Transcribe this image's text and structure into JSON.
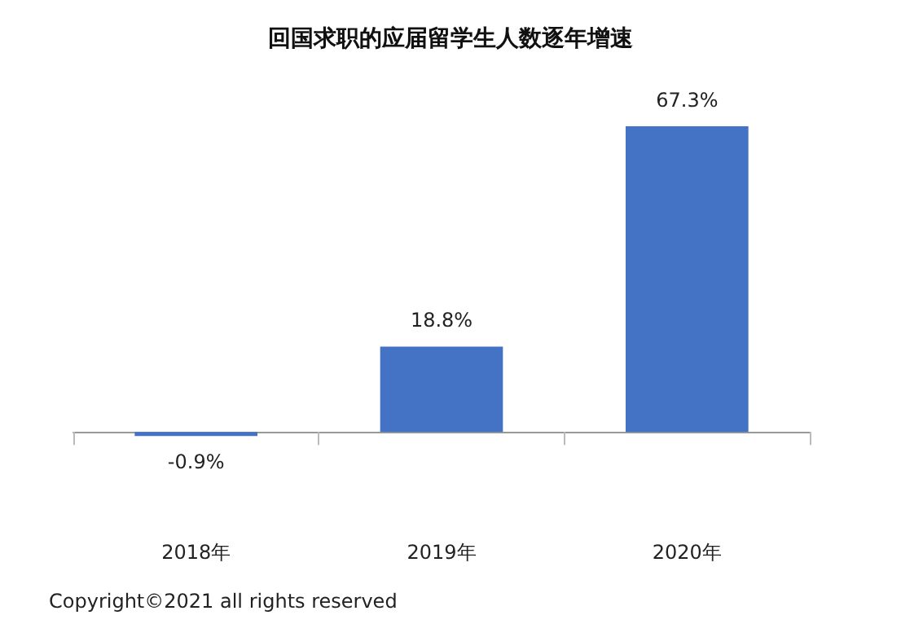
{
  "chart_data": {
    "type": "bar",
    "title": "回国求职的应届留学生人数逐年增速",
    "categories": [
      "2018年",
      "2019年",
      "2020年"
    ],
    "values": [
      -0.9,
      18.8,
      67.3
    ],
    "color": "#4472c4",
    "value_labels": [
      "-0.9%",
      "18.8%",
      "67.3%"
    ],
    "grid": false,
    "annotations": [
      "Copyright©2021 all rights reserved"
    ]
  }
}
